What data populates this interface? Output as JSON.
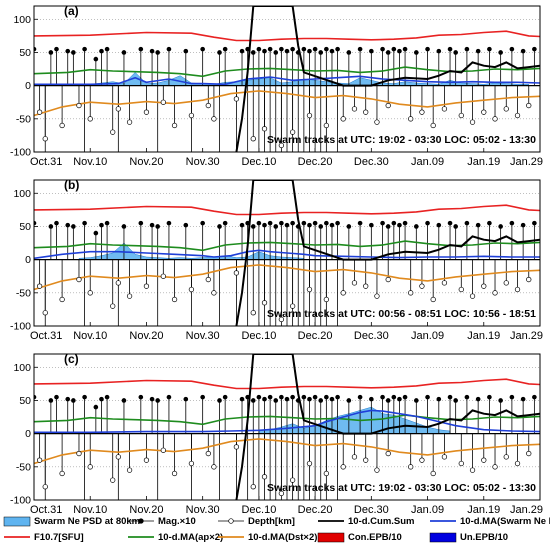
{
  "chart_data": [
    {
      "type": "line",
      "panel_label": "(a)",
      "annotation": "Swarm tracks at UTC: 19:02 - 03:30 LOC: 05:02 - 13:30",
      "x_tick_labels": [
        "Oct.31",
        "Nov.10",
        "Nov.20",
        "Nov.30",
        "Dec.10",
        "Dec.20",
        "Dec.30",
        "Jan.09",
        "Jan.19",
        "Jan.29"
      ],
      "y_tick_labels": [
        "-100",
        "-50",
        "0",
        "50",
        "100"
      ],
      "xlim": [
        0,
        90
      ],
      "ylim": [
        -100,
        120
      ],
      "series": [
        {
          "name": "F10.7[SFU]",
          "x": [
            0,
            10,
            20,
            28,
            32,
            36,
            40,
            44,
            48,
            52,
            56,
            60,
            64,
            68,
            72,
            76,
            80,
            84,
            88,
            90
          ],
          "values": [
            75,
            76,
            80,
            79,
            73,
            68,
            68,
            70,
            71,
            71,
            70,
            69,
            70,
            72,
            76,
            77,
            80,
            82,
            75,
            74
          ]
        },
        {
          "name": "10-d.MA(ap×2)",
          "x": [
            0,
            6,
            10,
            14,
            18,
            22,
            26,
            30,
            34,
            38,
            42,
            46,
            50,
            54,
            58,
            62,
            66,
            70,
            74,
            78,
            82,
            86,
            90
          ],
          "values": [
            18,
            20,
            24,
            22,
            21,
            20,
            18,
            14,
            22,
            25,
            26,
            24,
            22,
            23,
            20,
            22,
            28,
            24,
            21,
            22,
            25,
            24,
            26
          ]
        },
        {
          "name": "10-d.MA(Dst×2)",
          "x": [
            0,
            5,
            10,
            15,
            20,
            25,
            30,
            35,
            40,
            45,
            50,
            55,
            60,
            65,
            70,
            75,
            80,
            85,
            90
          ],
          "values": [
            -45,
            -32,
            -25,
            -28,
            -24,
            -27,
            -22,
            -12,
            -8,
            -12,
            -18,
            -15,
            -20,
            -28,
            -32,
            -26,
            -22,
            -18,
            -16
          ]
        },
        {
          "name": "10-d.MA(Swarm Ne PSD)",
          "x": [
            0,
            5,
            10,
            15,
            18,
            20,
            24,
            28,
            30,
            34,
            38,
            42,
            46,
            50,
            54,
            58,
            62,
            66,
            70,
            74,
            78,
            82,
            86,
            90
          ],
          "values": [
            2,
            2,
            2,
            3,
            12,
            5,
            10,
            3,
            3,
            2,
            10,
            13,
            8,
            10,
            12,
            14,
            10,
            8,
            6,
            5,
            6,
            5,
            5,
            4
          ]
        },
        {
          "name": "10-d.Cum.Sum",
          "x": [
            36,
            37,
            38,
            39,
            46,
            47,
            48,
            55,
            60,
            63,
            66,
            70,
            72,
            74,
            76,
            78,
            80,
            82,
            84,
            86,
            88,
            90
          ],
          "values": [
            -100,
            -50,
            20,
            120,
            120,
            60,
            20,
            0,
            0,
            8,
            12,
            10,
            15,
            22,
            20,
            35,
            30,
            28,
            35,
            26,
            28,
            30
          ]
        }
      ],
      "ne_psd_80km": {
        "x": [
          10,
          12,
          14,
          16,
          18,
          20,
          22,
          24,
          26,
          28,
          30,
          32,
          34,
          36,
          38,
          40,
          42,
          44,
          46,
          48,
          50,
          52,
          54,
          56,
          58,
          60,
          62,
          64,
          66,
          68,
          70,
          72,
          74,
          76,
          78,
          80,
          82,
          84,
          86,
          88
        ],
        "values": [
          2,
          4,
          6,
          3,
          20,
          3,
          4,
          8,
          15,
          4,
          3,
          2,
          5,
          6,
          8,
          10,
          12,
          4,
          6,
          10,
          8,
          6,
          4,
          3,
          12,
          8,
          4,
          3,
          6,
          4,
          3,
          2,
          8,
          4,
          3,
          2,
          4,
          3,
          2,
          2
        ]
      }
    },
    {
      "type": "line",
      "panel_label": "(b)",
      "annotation": "Swarm tracks at UTC: 00:56 - 08:51 LOC: 10:56 - 18:51",
      "x_tick_labels": [
        "Oct.31",
        "Nov.10",
        "Nov.20",
        "Nov.30",
        "Dec.10",
        "Dec.20",
        "Dec.30",
        "Jan.09",
        "Jan.19",
        "Jan.29"
      ],
      "y_tick_labels": [
        "-100",
        "-50",
        "0",
        "50",
        "100"
      ],
      "xlim": [
        0,
        90
      ],
      "ylim": [
        -100,
        120
      ],
      "series": [
        {
          "name": "F10.7[SFU]",
          "x": [
            0,
            10,
            20,
            28,
            32,
            36,
            40,
            44,
            48,
            52,
            56,
            60,
            64,
            68,
            72,
            76,
            80,
            84,
            88,
            90
          ],
          "values": [
            75,
            76,
            80,
            79,
            73,
            68,
            68,
            70,
            71,
            71,
            70,
            69,
            70,
            72,
            76,
            77,
            80,
            82,
            75,
            74
          ]
        },
        {
          "name": "10-d.MA(ap×2)",
          "x": [
            0,
            6,
            10,
            14,
            18,
            22,
            26,
            30,
            34,
            38,
            42,
            46,
            50,
            54,
            58,
            62,
            66,
            70,
            74,
            78,
            82,
            86,
            90
          ],
          "values": [
            18,
            20,
            24,
            22,
            21,
            20,
            18,
            14,
            22,
            25,
            26,
            24,
            22,
            23,
            20,
            22,
            28,
            24,
            21,
            22,
            25,
            24,
            26
          ]
        },
        {
          "name": "10-d.MA(Dst×2)",
          "x": [
            0,
            5,
            10,
            15,
            20,
            25,
            30,
            35,
            40,
            45,
            50,
            55,
            60,
            65,
            70,
            75,
            80,
            85,
            90
          ],
          "values": [
            -45,
            -32,
            -25,
            -28,
            -24,
            -27,
            -22,
            -12,
            -8,
            -12,
            -18,
            -15,
            -20,
            -28,
            -32,
            -26,
            -22,
            -18,
            -16
          ]
        },
        {
          "name": "10-d.MA(Swarm Ne PSD)",
          "x": [
            0,
            5,
            10,
            15,
            20,
            25,
            30,
            32,
            35,
            38,
            40,
            42,
            45,
            48,
            50,
            55,
            60,
            65,
            70,
            75,
            80,
            85,
            90
          ],
          "values": [
            2,
            8,
            12,
            12,
            10,
            8,
            6,
            4,
            6,
            12,
            14,
            12,
            10,
            8,
            6,
            5,
            4,
            3,
            4,
            4,
            5,
            4,
            4
          ]
        },
        {
          "name": "10-d.Cum.Sum",
          "x": [
            36,
            37,
            38,
            39,
            46,
            47,
            48,
            55,
            60,
            63,
            66,
            70,
            72,
            74,
            76,
            78,
            80,
            82,
            84,
            86,
            88,
            90
          ],
          "values": [
            -100,
            -50,
            20,
            120,
            120,
            60,
            20,
            0,
            0,
            8,
            12,
            10,
            15,
            22,
            20,
            35,
            30,
            28,
            35,
            26,
            28,
            30
          ]
        }
      ],
      "ne_psd_80km": {
        "x": [
          8,
          10,
          12,
          14,
          16,
          18,
          20,
          22,
          24,
          26,
          28,
          30,
          32,
          34,
          36,
          38,
          40,
          42,
          44,
          46,
          48
        ],
        "values": [
          2,
          3,
          6,
          10,
          25,
          8,
          4,
          3,
          2,
          3,
          2,
          3,
          4,
          6,
          3,
          4,
          12,
          6,
          4,
          3,
          2
        ]
      }
    },
    {
      "type": "line",
      "panel_label": "(c)",
      "annotation": "Swarm tracks at UTC: 19:02 - 03:30 LOC: 05:02 - 13:30",
      "x_tick_labels": [
        "Oct.31",
        "Nov.10",
        "Nov.20",
        "Nov.30",
        "Dec.10",
        "Dec.20",
        "Dec.30",
        "Jan.09",
        "Jan.19",
        "Jan.29"
      ],
      "y_tick_labels": [
        "-100",
        "-50",
        "0",
        "50",
        "100"
      ],
      "xlim": [
        0,
        90
      ],
      "ylim": [
        -100,
        120
      ],
      "series": [
        {
          "name": "F10.7[SFU]",
          "x": [
            0,
            10,
            20,
            28,
            32,
            36,
            40,
            44,
            48,
            52,
            56,
            60,
            64,
            68,
            72,
            76,
            80,
            84,
            88,
            90
          ],
          "values": [
            75,
            76,
            80,
            79,
            73,
            68,
            68,
            70,
            71,
            71,
            70,
            69,
            70,
            72,
            76,
            77,
            80,
            82,
            75,
            74
          ]
        },
        {
          "name": "10-d.MA(ap×2)",
          "x": [
            0,
            6,
            10,
            14,
            18,
            22,
            26,
            30,
            34,
            38,
            42,
            46,
            50,
            54,
            58,
            62,
            66,
            70,
            74,
            78,
            82,
            86,
            90
          ],
          "values": [
            18,
            20,
            24,
            22,
            21,
            20,
            18,
            14,
            22,
            25,
            26,
            24,
            22,
            23,
            20,
            22,
            28,
            24,
            21,
            22,
            25,
            24,
            26
          ]
        },
        {
          "name": "10-d.MA(Dst×2)",
          "x": [
            0,
            5,
            10,
            15,
            20,
            25,
            30,
            35,
            40,
            45,
            50,
            55,
            60,
            65,
            70,
            75,
            80,
            85,
            90
          ],
          "values": [
            -45,
            -32,
            -25,
            -28,
            -24,
            -27,
            -22,
            -12,
            -8,
            -12,
            -18,
            -15,
            -20,
            -28,
            -32,
            -26,
            -22,
            -18,
            -16
          ]
        },
        {
          "name": "10-d.MA(Swarm Ne PSD)",
          "x": [
            0,
            10,
            20,
            30,
            35,
            40,
            45,
            50,
            52,
            55,
            58,
            60,
            62,
            65,
            68,
            70,
            75,
            80,
            85,
            90
          ],
          "values": [
            2,
            2,
            3,
            3,
            4,
            5,
            8,
            12,
            18,
            25,
            32,
            35,
            34,
            30,
            26,
            22,
            12,
            6,
            4,
            3
          ]
        },
        {
          "name": "10-d.Cum.Sum",
          "x": [
            36,
            37,
            38,
            39,
            46,
            47,
            48,
            55,
            60,
            63,
            66,
            70,
            72,
            74,
            76,
            78,
            80,
            82,
            84,
            86,
            88,
            90
          ],
          "values": [
            -100,
            -50,
            20,
            120,
            120,
            60,
            20,
            0,
            0,
            8,
            12,
            10,
            15,
            22,
            20,
            35,
            30,
            28,
            35,
            26,
            28,
            30
          ]
        }
      ],
      "ne_psd_80km": {
        "x": [
          40,
          42,
          44,
          46,
          48,
          50,
          52,
          54,
          56,
          58,
          60,
          62,
          64,
          66,
          68,
          70,
          72,
          74
        ],
        "values": [
          4,
          6,
          10,
          15,
          8,
          12,
          20,
          26,
          30,
          35,
          40,
          30,
          28,
          22,
          16,
          10,
          6,
          4
        ]
      }
    }
  ],
  "markers": {
    "mag_days": [
      0,
      3,
      4,
      6,
      7,
      9,
      11,
      12,
      13,
      16,
      19,
      21,
      22,
      24,
      27,
      30,
      33,
      34,
      37,
      38,
      39,
      40,
      41,
      42,
      43,
      44,
      45,
      46,
      47,
      48,
      49,
      50,
      51,
      52,
      53,
      54,
      56,
      58,
      60,
      62,
      63,
      64,
      65,
      66,
      68,
      70,
      72,
      74,
      75,
      77,
      79,
      81,
      83,
      85,
      87,
      89
    ],
    "mag_values": [
      55,
      50,
      55,
      52,
      50,
      55,
      40,
      52,
      55,
      50,
      55,
      52,
      50,
      55,
      52,
      55,
      50,
      55,
      52,
      55,
      50,
      55,
      52,
      55,
      50,
      55,
      52,
      55,
      50,
      55,
      52,
      55,
      50,
      55,
      52,
      55,
      50,
      55,
      52,
      55,
      50,
      55,
      52,
      55,
      50,
      55,
      52,
      55,
      50,
      55,
      52,
      55,
      50,
      55,
      52,
      55
    ],
    "depth_days": [
      1,
      2,
      5,
      8,
      10,
      14,
      15,
      17,
      20,
      23,
      25,
      28,
      31,
      32,
      36,
      39,
      41,
      44,
      46,
      49,
      52,
      55,
      57,
      59,
      61,
      63,
      67,
      69,
      71,
      73,
      76,
      78,
      80,
      82,
      84,
      86,
      88
    ],
    "depth_values": [
      -40,
      -80,
      -60,
      -30,
      -50,
      -70,
      -35,
      -55,
      -40,
      -25,
      -60,
      -45,
      -30,
      -50,
      -20,
      -80,
      -65,
      -90,
      -70,
      -45,
      -60,
      -50,
      -35,
      -40,
      -55,
      -30,
      -50,
      -40,
      -60,
      -35,
      -45,
      -55,
      -40,
      -50,
      -35,
      -45,
      -30
    ]
  },
  "legend": [
    {
      "label": "Swarm Ne PSD at 80km",
      "symbol": "patch",
      "color": "#5fb4f0"
    },
    {
      "label": "Mag.×10",
      "symbol": "filled-circle",
      "color": "#000000"
    },
    {
      "label": "Depth[km]",
      "symbol": "open-circle",
      "color": "#000000"
    },
    {
      "label": "10-d.Cum.Sum",
      "symbol": "line",
      "color": "#000000"
    },
    {
      "label": "10-d.MA(Swarm Ne PSD)",
      "symbol": "line",
      "color": "#1f3fd8"
    },
    {
      "label": "F10.7[SFU]",
      "symbol": "line",
      "color": "#e82222"
    },
    {
      "label": "10-d.MA(ap×2)",
      "symbol": "line",
      "color": "#1e8c1e"
    },
    {
      "label": "10-d.MA(Dst×2)",
      "symbol": "line",
      "color": "#e08a1e"
    },
    {
      "label": "Con.EPB/10",
      "symbol": "patch",
      "color": "#e00000"
    },
    {
      "label": "Un.EPB/10",
      "symbol": "patch",
      "color": "#0000e0"
    }
  ]
}
